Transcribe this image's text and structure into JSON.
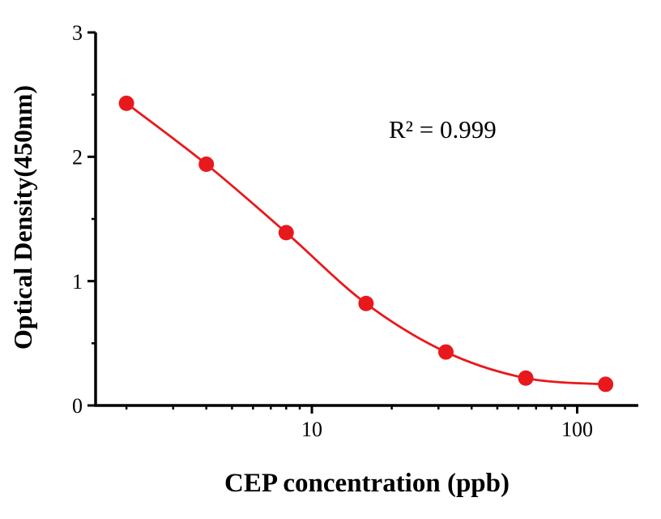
{
  "figure": {
    "background": "#ffffff",
    "axis_color": "#000000",
    "accent_color": "#e8191d"
  },
  "chart_data": {
    "type": "scatter",
    "subtype": "standard-curve-with-fitted-line",
    "title": "",
    "xlabel": "CEP concentration (ppb)",
    "ylabel": "Optical Density(450nm)",
    "annotation": "R² = 0.999",
    "x": [
      2,
      4,
      8,
      16,
      32,
      64,
      128
    ],
    "y": [
      2.43,
      1.94,
      1.39,
      0.82,
      0.43,
      0.22,
      0.17
    ],
    "x_scale": "log10",
    "xlim": [
      1.53,
      170
    ],
    "ylim": [
      0,
      3
    ],
    "x_ticks_major": [
      10,
      100
    ],
    "x_tick_labels": [
      "10",
      "100"
    ],
    "x_ticks_minor": [
      2,
      3,
      4,
      5,
      6,
      7,
      8,
      9,
      20,
      30,
      40,
      50,
      60,
      70,
      80,
      90
    ],
    "y_ticks_major": [
      0,
      1,
      2,
      3
    ],
    "y_tick_labels": [
      "0",
      "1",
      "2",
      "3"
    ],
    "y_ticks_minor": [
      0.5,
      1.5,
      2.5
    ],
    "grid": false,
    "legend": "none",
    "marker_color": "#e8191d",
    "line_color": "#e8191d"
  }
}
